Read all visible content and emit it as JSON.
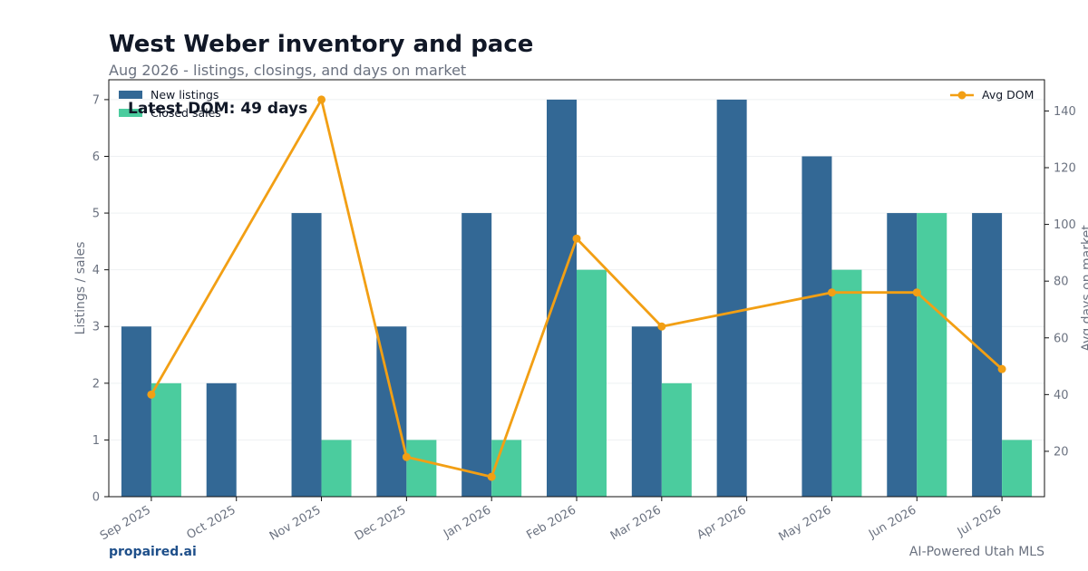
{
  "header": {
    "title": "West Weber inventory and pace",
    "subtitle": "Aug 2026 - listings, closings, and days on market"
  },
  "footer": {
    "brand": "propaired.ai",
    "tagline": "AI-Powered Utah MLS"
  },
  "colors": {
    "listings": "#336895",
    "closed": "#4bcc9e",
    "dom": "#f29f14"
  },
  "chart_data": {
    "type": "bar",
    "categories": [
      "Sep 2025",
      "Oct 2025",
      "Nov 2025",
      "Dec 2025",
      "Jan 2026",
      "Feb 2026",
      "Mar 2026",
      "Apr 2026",
      "May 2026",
      "Jun 2026",
      "Jul 2026"
    ],
    "series": [
      {
        "name": "New listings",
        "type": "bar",
        "axis": "left",
        "values": [
          3,
          2,
          5,
          3,
          5,
          7,
          3,
          7,
          6,
          5,
          5
        ]
      },
      {
        "name": "Closed sales",
        "type": "bar",
        "axis": "left",
        "values": [
          2,
          0,
          1,
          1,
          1,
          4,
          2,
          0,
          4,
          5,
          1
        ]
      },
      {
        "name": "Avg DOM",
        "type": "line",
        "axis": "right",
        "values": [
          40,
          null,
          144,
          18,
          11,
          95,
          64,
          null,
          76,
          76,
          49
        ]
      }
    ],
    "ylabel": "Listings / sales",
    "y2label": "Avg days on market",
    "ylim": [
      0,
      7.35
    ],
    "y2lim": [
      4,
      151
    ],
    "yticks": [
      0,
      1,
      2,
      3,
      4,
      5,
      6,
      7
    ],
    "y2ticks": [
      20,
      40,
      60,
      80,
      100,
      120,
      140
    ],
    "annotation": "Latest DOM: 49 days",
    "legend_left": "top-left",
    "legend_right": "top-right",
    "grid": true
  }
}
